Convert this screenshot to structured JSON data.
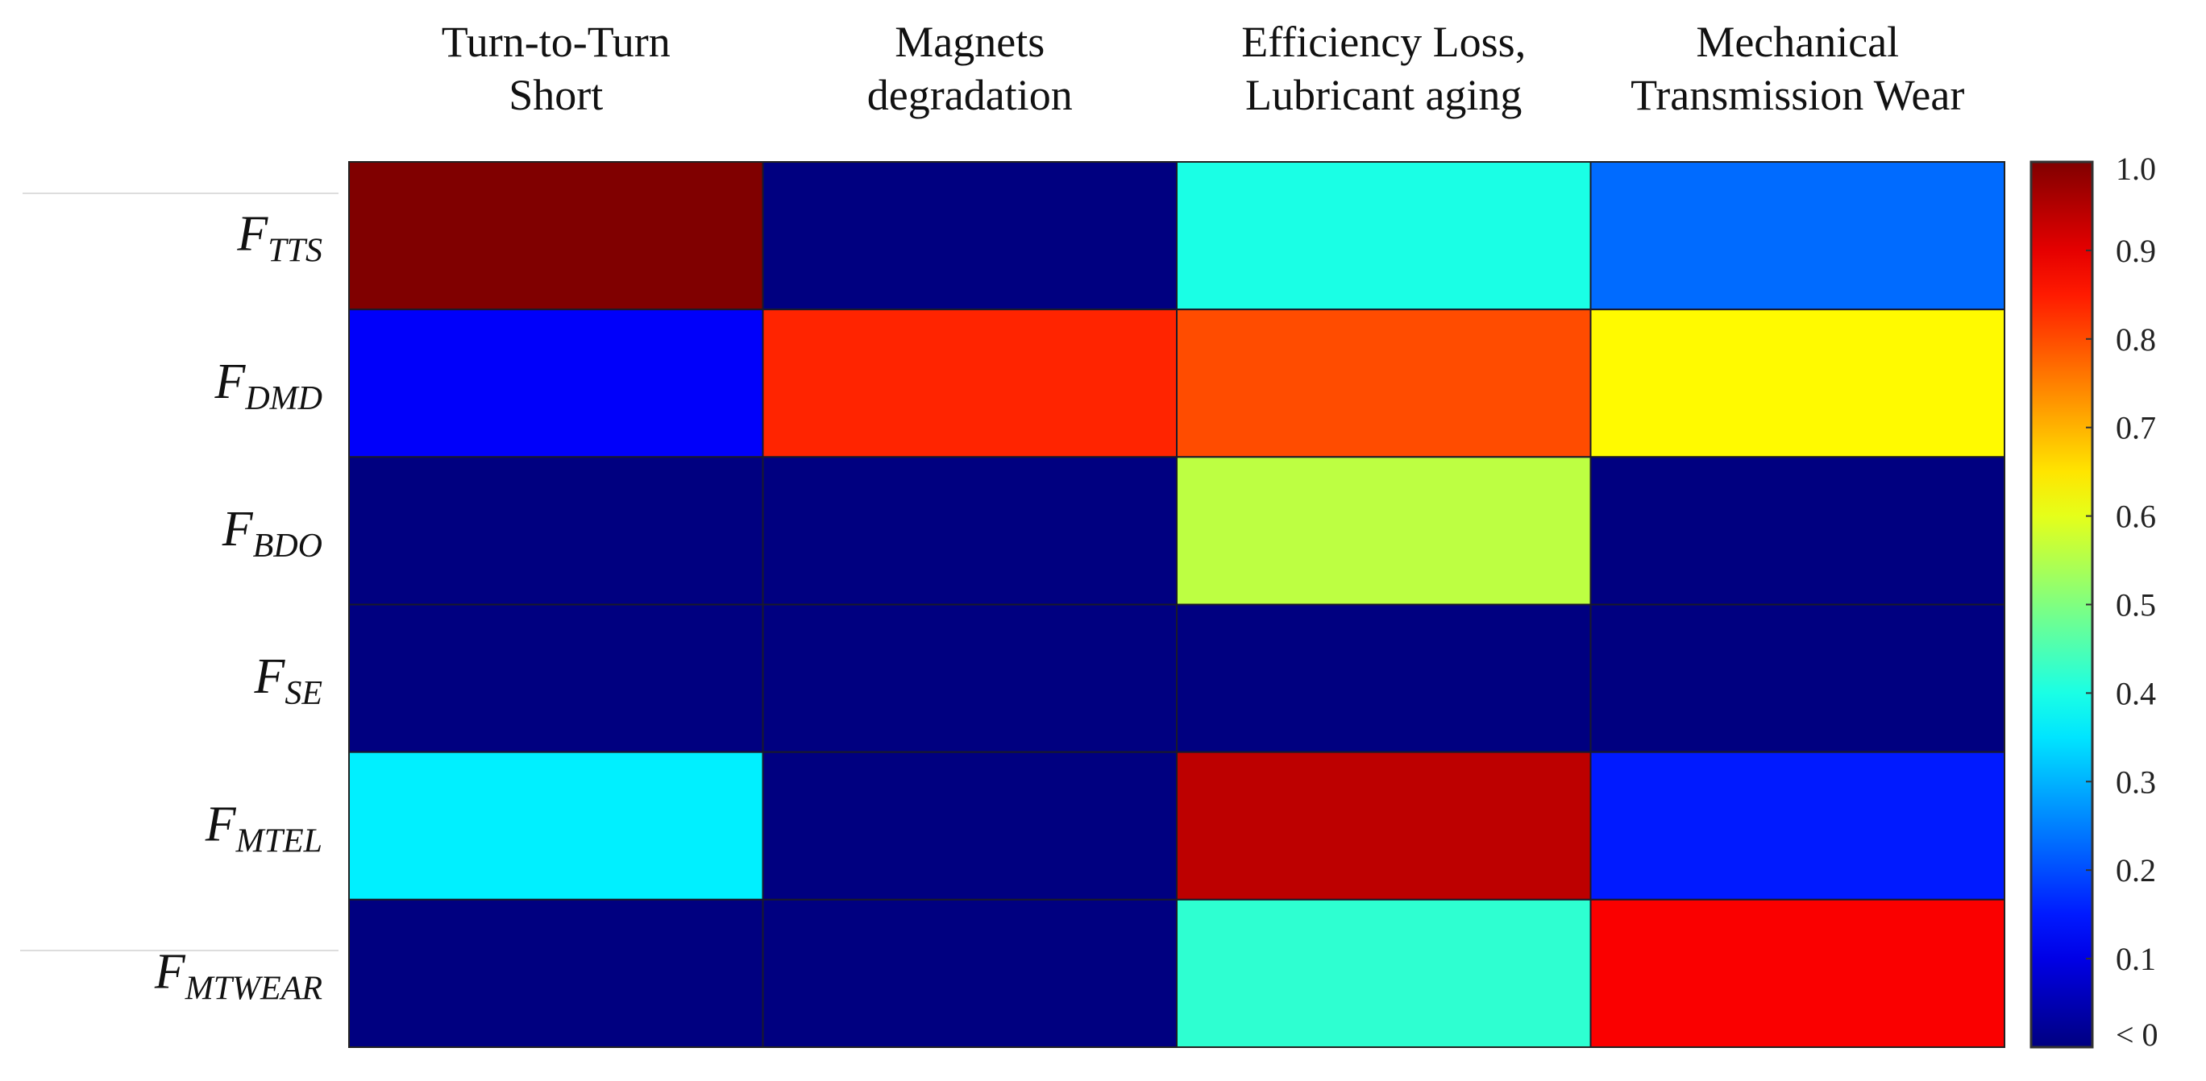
{
  "chart_data": {
    "type": "heatmap",
    "columns": [
      [
        "Turn-to-Turn",
        "Short"
      ],
      [
        "Magnets",
        "degradation"
      ],
      [
        "Efficiency Loss,",
        "Lubricant aging"
      ],
      [
        "Mechanical",
        "Transmission Wear"
      ]
    ],
    "rows": [
      {
        "main": "F",
        "sub": "TTS"
      },
      {
        "main": "F",
        "sub": "DMD"
      },
      {
        "main": "F",
        "sub": "BDO"
      },
      {
        "main": "F",
        "sub": "SE"
      },
      {
        "main": "F",
        "sub": "MTEL"
      },
      {
        "main": "F",
        "sub": "MTWEAR"
      }
    ],
    "values": [
      [
        1.0,
        0.0,
        0.4,
        0.23
      ],
      [
        0.12,
        0.84,
        0.8,
        0.63
      ],
      [
        0.0,
        0.0,
        0.56,
        0.0
      ],
      [
        0.0,
        0.0,
        0.0,
        0.0
      ],
      [
        0.36,
        0.0,
        0.94,
        0.15
      ],
      [
        0.0,
        0.0,
        0.42,
        0.88
      ]
    ],
    "colormap": "jet",
    "colorbar": {
      "range": [
        0,
        1
      ],
      "tick_labels": [
        "< 0",
        "0.1",
        "0.2",
        "0.3",
        "0.4",
        "0.5",
        "0.6",
        "0.7",
        "0.8",
        "0.9",
        "1.0"
      ],
      "placement": "right"
    },
    "title": "",
    "xlabel": "",
    "ylabel": ""
  }
}
